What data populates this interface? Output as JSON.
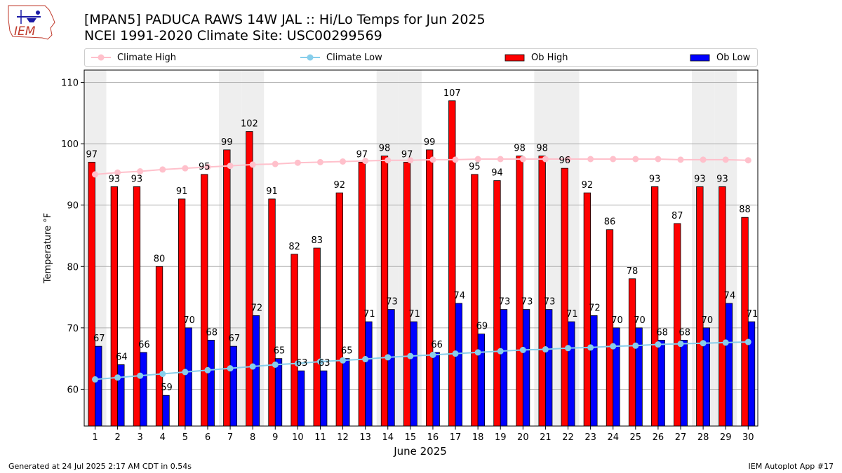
{
  "header": {
    "title_line1": "[MPAN5] PADUCA RAWS 14W JAL :: Hi/Lo Temps for Jun 2025",
    "title_line2": "NCEI 1991-2020 Climate Site: USC00299569",
    "logo_text": "IEM"
  },
  "footer": {
    "generated": "Generated at 24 Jul 2025 2:17 AM CDT in 0.54s",
    "app": "IEM Autoplot App #17"
  },
  "colors": {
    "ob_high": "#ff0000",
    "ob_low": "#0000ff",
    "climate_high": "#ffc0cb",
    "climate_low": "#87ceeb",
    "weekend_band": "#eeeeee"
  },
  "chart_data": {
    "type": "bar",
    "xlabel": "June 2025",
    "ylabel": "Temperature °F",
    "ylim": [
      54,
      112
    ],
    "yticks": [
      60,
      70,
      80,
      90,
      100,
      110
    ],
    "grid": "horizontal",
    "legend_position": "top",
    "shaded_days": [
      1,
      7,
      8,
      14,
      15,
      21,
      22,
      28,
      29
    ],
    "categories": [
      "1",
      "2",
      "3",
      "4",
      "5",
      "6",
      "7",
      "8",
      "9",
      "10",
      "11",
      "12",
      "13",
      "14",
      "15",
      "16",
      "17",
      "18",
      "19",
      "20",
      "21",
      "22",
      "23",
      "24",
      "25",
      "26",
      "27",
      "28",
      "29",
      "30"
    ],
    "series": [
      {
        "name": "Ob High",
        "kind": "bar",
        "values": [
          97,
          93,
          93,
          80,
          91,
          95,
          99,
          102,
          91,
          82,
          83,
          92,
          97,
          98,
          97,
          99,
          107,
          95,
          94,
          98,
          98,
          96,
          92,
          86,
          78,
          93,
          87,
          93,
          93,
          88
        ]
      },
      {
        "name": "Ob Low",
        "kind": "bar",
        "values": [
          67,
          64,
          66,
          59,
          70,
          68,
          67,
          72,
          65,
          63,
          63,
          65,
          71,
          73,
          71,
          66,
          74,
          69,
          73,
          73,
          73,
          71,
          72,
          70,
          70,
          68,
          68,
          70,
          74,
          71
        ]
      },
      {
        "name": "Climate High",
        "kind": "line",
        "values": [
          95.0,
          95.3,
          95.5,
          95.8,
          96.0,
          96.2,
          96.4,
          96.6,
          96.7,
          96.9,
          97.0,
          97.1,
          97.2,
          97.3,
          97.3,
          97.4,
          97.4,
          97.5,
          97.5,
          97.5,
          97.5,
          97.5,
          97.5,
          97.5,
          97.5,
          97.5,
          97.4,
          97.4,
          97.4,
          97.3
        ]
      },
      {
        "name": "Climate Low",
        "kind": "line",
        "values": [
          61.6,
          61.9,
          62.2,
          62.5,
          62.8,
          63.1,
          63.4,
          63.7,
          64.0,
          64.2,
          64.5,
          64.7,
          64.9,
          65.2,
          65.4,
          65.6,
          65.8,
          66.0,
          66.2,
          66.4,
          66.5,
          66.7,
          66.8,
          67.0,
          67.1,
          67.3,
          67.4,
          67.5,
          67.6,
          67.7
        ]
      }
    ]
  }
}
